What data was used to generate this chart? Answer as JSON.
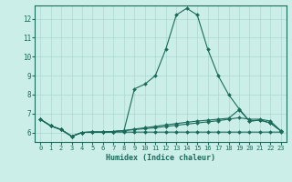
{
  "xlabel": "Humidex (Indice chaleur)",
  "background_color": "#cceee8",
  "line_color": "#1a6b5a",
  "grid_color": "#aad8d0",
  "xlim": [
    -0.5,
    23.5
  ],
  "ylim": [
    5.5,
    12.7
  ],
  "yticks": [
    6,
    7,
    8,
    9,
    10,
    11,
    12
  ],
  "xticks": [
    0,
    1,
    2,
    3,
    4,
    5,
    6,
    7,
    8,
    9,
    10,
    11,
    12,
    13,
    14,
    15,
    16,
    17,
    18,
    19,
    20,
    21,
    22,
    23
  ],
  "series": [
    [
      6.7,
      6.35,
      6.15,
      5.8,
      6.0,
      6.02,
      6.02,
      6.05,
      6.1,
      8.3,
      8.55,
      9.0,
      10.4,
      12.2,
      12.55,
      12.2,
      10.4,
      9.0,
      8.0,
      7.25,
      6.6,
      6.65,
      6.5,
      6.08
    ],
    [
      6.7,
      6.35,
      6.15,
      5.8,
      6.0,
      6.02,
      6.02,
      6.05,
      6.1,
      6.18,
      6.25,
      6.32,
      6.4,
      6.47,
      6.54,
      6.6,
      6.65,
      6.7,
      6.75,
      7.2,
      6.6,
      6.65,
      6.5,
      6.08
    ],
    [
      6.7,
      6.35,
      6.15,
      5.8,
      6.0,
      6.02,
      6.02,
      6.05,
      6.1,
      6.15,
      6.2,
      6.25,
      6.32,
      6.38,
      6.44,
      6.5,
      6.56,
      6.62,
      6.7,
      6.78,
      6.7,
      6.7,
      6.6,
      6.08
    ],
    [
      6.7,
      6.35,
      6.15,
      5.8,
      6.0,
      6.02,
      6.02,
      6.02,
      6.02,
      6.02,
      6.02,
      6.02,
      6.02,
      6.02,
      6.02,
      6.02,
      6.02,
      6.02,
      6.02,
      6.02,
      6.02,
      6.02,
      6.02,
      6.02
    ]
  ]
}
